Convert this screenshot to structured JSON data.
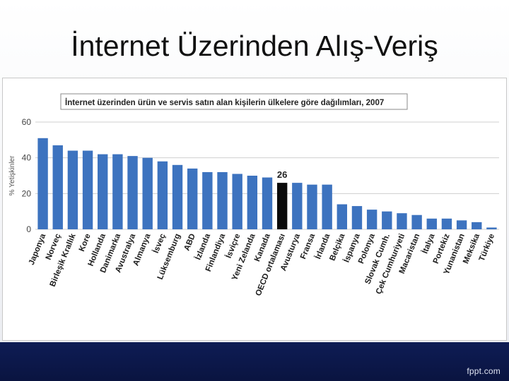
{
  "slide": {
    "title": "İnternet Üzerinden Alış-Veriş",
    "footer_logo": "fppt.com"
  },
  "colors": {
    "bar": "#3d73bf",
    "highlight_bar": "#0a0a0a",
    "footer": "#0e1c55"
  },
  "chart_data": {
    "type": "bar",
    "title": "İnternet üzerinden ürün ve servis satın alan kişilerin ülkelere göre dağılımları, 2007",
    "ylabel": "% Yetişkinler",
    "xlabel": "",
    "ylim": [
      0,
      60
    ],
    "yticks": [
      0,
      20,
      40,
      60
    ],
    "grid": true,
    "annotation": {
      "category": "OECD ortalaması",
      "text": "26"
    },
    "highlight": "OECD ortalaması",
    "categories": [
      "Japonya",
      "Norveç",
      "Birleşik Krallık",
      "Kore",
      "Hollanda",
      "Danimarka",
      "Avustralya",
      "Almanya",
      "İsveç",
      "Lüksemburg",
      "ABD",
      "İzlanda",
      "Finlandiya",
      "İsviçre",
      "Yeni Zelanda",
      "Kanada",
      "OECD ortalaması",
      "Avusturya",
      "Fransa",
      "İrlanda",
      "Belçika",
      "İspanya",
      "Polonya",
      "Slovak Cumh.",
      "Çek Cumhuriyeti",
      "Macaristan",
      "İtalya",
      "Portekiz",
      "Yunanistan",
      "Meksika",
      "Türkiye"
    ],
    "values": [
      51,
      47,
      44,
      44,
      42,
      42,
      41,
      40,
      38,
      36,
      34,
      32,
      32,
      31,
      30,
      29,
      26,
      26,
      25,
      25,
      14,
      13,
      11,
      10,
      9,
      8,
      6,
      6,
      5,
      4,
      1
    ]
  }
}
